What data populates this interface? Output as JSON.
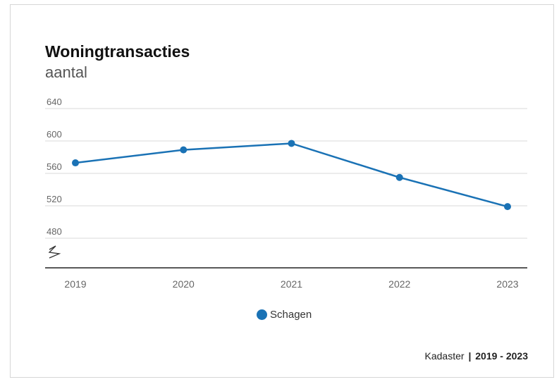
{
  "colors": {
    "series": "#1a72b5",
    "grid": "#d9d9d9",
    "axis": "#222222",
    "tick_text": "#666666"
  },
  "chart_data": {
    "type": "line",
    "title": "Woningtransacties",
    "subtitle": "aantal",
    "x": [
      "2019",
      "2020",
      "2021",
      "2022",
      "2023"
    ],
    "series": [
      {
        "name": "Schagen",
        "values": [
          573,
          589,
          597,
          555,
          519
        ]
      }
    ],
    "yticks": [
      "640",
      "600",
      "560",
      "520",
      "480"
    ],
    "ylim": [
      480,
      640
    ],
    "axis_break": true,
    "grid": true,
    "legend_position": "bottom-center"
  },
  "source": {
    "name": "Kadaster",
    "separator": "|",
    "range": "2019 - 2023"
  }
}
